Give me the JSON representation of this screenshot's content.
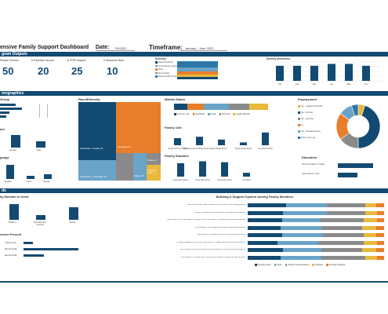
{
  "header": {
    "title": "ensive Family Support Dashboard",
    "date_label": "Date:",
    "date": "7/4/2022",
    "timeframe_label": "Timeframe:",
    "timeframe": "January - June 2022"
  },
  "sections": {
    "program_outputs": "gram Outputs",
    "demographics": "mographics",
    "needs": "ds"
  },
  "kpis": [
    {
      "label": "People Served",
      "value": "50"
    },
    {
      "label": "# Families Served",
      "value": "20"
    },
    {
      "label": "# IFSP Intakes",
      "value": "25"
    },
    {
      "label": "# Sessions Held",
      "value": "10"
    }
  ],
  "referrals": {
    "title": "Referrals",
    "items": [
      "Family Physician",
      "Current/former patient",
      "Other",
      "Next website",
      "Alberta Health Services"
    ]
  },
  "monthly_attendance": {
    "title": "Monthly Attendance",
    "months": [
      "Jan",
      "Feb",
      "Mar",
      "Apr",
      "May",
      "Jun"
    ]
  },
  "demographics": {
    "group_title": "Group",
    "gender_title": "der",
    "gender_labels": [
      "Female",
      "Male"
    ],
    "language_title": "guage",
    "language_labels": [
      "English",
      "Hindi",
      "Punjabi"
    ],
    "race_title": "Race/Ethnicity",
    "race_labels": [
      "South Asian - Punjabi, 65",
      "Caucasian, 25",
      "South Asian - not Punjabi, 20",
      "Filipino, 15",
      "Chinese, 5",
      "Southeast Asian, 5"
    ],
    "marital_title": "Marital Status",
    "marital_legend": [
      "Common Law",
      "Separated",
      "Single",
      "Divorced",
      "Legally Married"
    ],
    "family_unit_title": "Family Unit",
    "family_unit_labels": [
      "Couple with no children",
      "Multigenerational family living together",
      "Single parent",
      "Single parent family",
      "Two parent family"
    ],
    "family_situation_title": "Family Situation",
    "family_situation_labels": [
      "Living with children",
      "Living with partner",
      "Living with partner",
      "Live alone"
    ],
    "employment_title": "Employment",
    "employment_legend": [
      "Yes - unable to find work",
      "Yes - full time",
      "Yes - part time",
      "No",
      "Yes - Casual/Contract",
      "Prefer not to say"
    ],
    "education_title": "Education",
    "education_labels": [
      "Post Secondary or higher",
      "High School or less"
    ]
  },
  "needs": {
    "family_member_title": "ily Member In Need",
    "family_member_labels": [
      "Child/ren",
      "Extended fam member",
      "Spouse"
    ],
    "issues_title": "ssues Present",
    "issues_labels": [
      "Chronic Pain",
      "Mental health",
      "Mental health"
    ],
    "support_title": "Building A Support System Among Family Members",
    "support_statements": [
      "I can think of many ways to support my loved one in their healing journey",
      "I believe my loved one can accomplish anything he/she wants to",
      "I am confident that I can influence a higher level of self-care in my physical and emotional wellness",
      "I am confident I can manage personal/life challenging emotions",
      "I feel confident in knowing my role in my loved one's recovery",
      "If I have a disagreement with my loved ones, it is usually resolved without an argument",
      "I am confident I can communicate with my loved one in times of emotional distress",
      "I am confident I can view that I am not what is setting my loved one onto recovery"
    ],
    "support_legend": [
      "Strongly Agree",
      "Agree",
      "Neither Agree/Disagree",
      "Disagree",
      "Strongly Disagree"
    ]
  },
  "chart_data": [
    {
      "type": "bar",
      "title": "Family Unit",
      "categories": [
        "Couple with no children",
        "Multigenerational family living together",
        "Single parent",
        "Single parent family",
        "Two parent family"
      ],
      "values": [
        10,
        12,
        8,
        4,
        18
      ]
    },
    {
      "type": "bar",
      "title": "Family Situation",
      "categories": [
        "Living with children",
        "Living with partner",
        "Living with partner",
        "Live alone"
      ],
      "values": [
        14,
        16,
        15,
        4
      ]
    },
    {
      "type": "pie",
      "title": "Employment",
      "categories": [
        "Yes - unable to find work",
        "Yes - full time",
        "Yes - part time",
        "No",
        "Yes - Casual/Contract",
        "Prefer not to say"
      ],
      "values": [
        5,
        45,
        15,
        20,
        10,
        5
      ]
    },
    {
      "type": "bar",
      "title": "Monthly Attendance",
      "categories": [
        "Jan",
        "Feb",
        "Mar",
        "Apr",
        "May",
        "Jun"
      ],
      "values": [
        8,
        8,
        8,
        9,
        9,
        8
      ]
    },
    {
      "type": "bar",
      "title": "Education",
      "categories": [
        "Post Secondary or higher",
        "High School or less"
      ],
      "values": [
        18,
        10
      ]
    },
    {
      "type": "bar",
      "title": "Building A Support System Among Family Members",
      "categories": [
        "1",
        "2",
        "3",
        "4",
        "5",
        "6",
        "7",
        "8"
      ],
      "series": [
        {
          "name": "Strongly Agree",
          "values": [
            28,
            26,
            25,
            24,
            25,
            22,
            26,
            24
          ]
        },
        {
          "name": "Agree",
          "values": [
            30,
            32,
            28,
            30,
            30,
            30,
            28,
            30
          ]
        },
        {
          "name": "Neither Agree/Disagree",
          "values": [
            28,
            28,
            32,
            30,
            30,
            33,
            30,
            32
          ]
        },
        {
          "name": "Disagree",
          "values": [
            8,
            9,
            10,
            10,
            9,
            10,
            10,
            9
          ]
        },
        {
          "name": "Strongly Disagree",
          "values": [
            6,
            5,
            5,
            6,
            6,
            5,
            6,
            5
          ]
        }
      ]
    }
  ]
}
